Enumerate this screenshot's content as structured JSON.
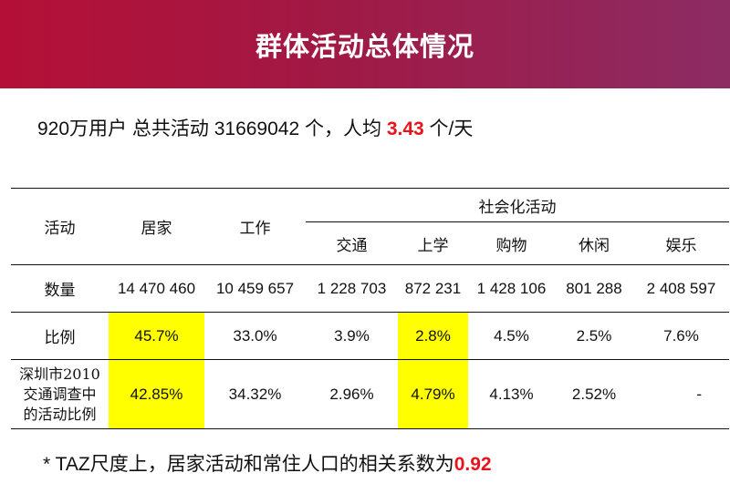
{
  "title": "群体活动总体情况",
  "summary": {
    "prefix": "920万用户 总共活动 31669042 个，人均 ",
    "avg": "3.43",
    "suffix": " 个/天"
  },
  "table": {
    "col_activity": "活动",
    "col_home": "居家",
    "col_work": "工作",
    "social_group": "社会化活动",
    "social_cols": [
      "交通",
      "上学",
      "购物",
      "休闲",
      "娱乐"
    ],
    "rows": [
      {
        "label": "数量",
        "values": [
          "14 470 460",
          "10 459 657",
          "1 228 703",
          "872 231",
          "1 428 106",
          "801 288",
          "2 408 597"
        ]
      },
      {
        "label": "比例",
        "values": [
          "45.7%",
          "33.0%",
          "3.9%",
          "2.8%",
          "4.5%",
          "2.5%",
          "7.6%"
        ]
      },
      {
        "label_lines": [
          "深圳市2010",
          "交通调查中",
          "的活动比例"
        ],
        "values": [
          "42.85%",
          "34.32%",
          "2.96%",
          "4.79%",
          "4.13%",
          "2.52%",
          "-"
        ]
      }
    ],
    "highlight_color": "#ffff00"
  },
  "footnote": {
    "text": "* TAZ尺度上，居家活动和常住人口的相关系数为",
    "value": "0.92"
  },
  "colors": {
    "header_gradient_start": "#b41037",
    "header_gradient_end": "#8c2c63",
    "emphasis_red": "#e8141d"
  }
}
